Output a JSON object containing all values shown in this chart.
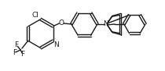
{
  "bg_color": "#ffffff",
  "line_color": "#1a1a1a",
  "line_width": 1.0,
  "font_size": 6.5,
  "figsize": [
    2.1,
    0.91
  ],
  "dpi": 100,
  "xlim": [
    0,
    210
  ],
  "ylim": [
    0,
    91
  ]
}
